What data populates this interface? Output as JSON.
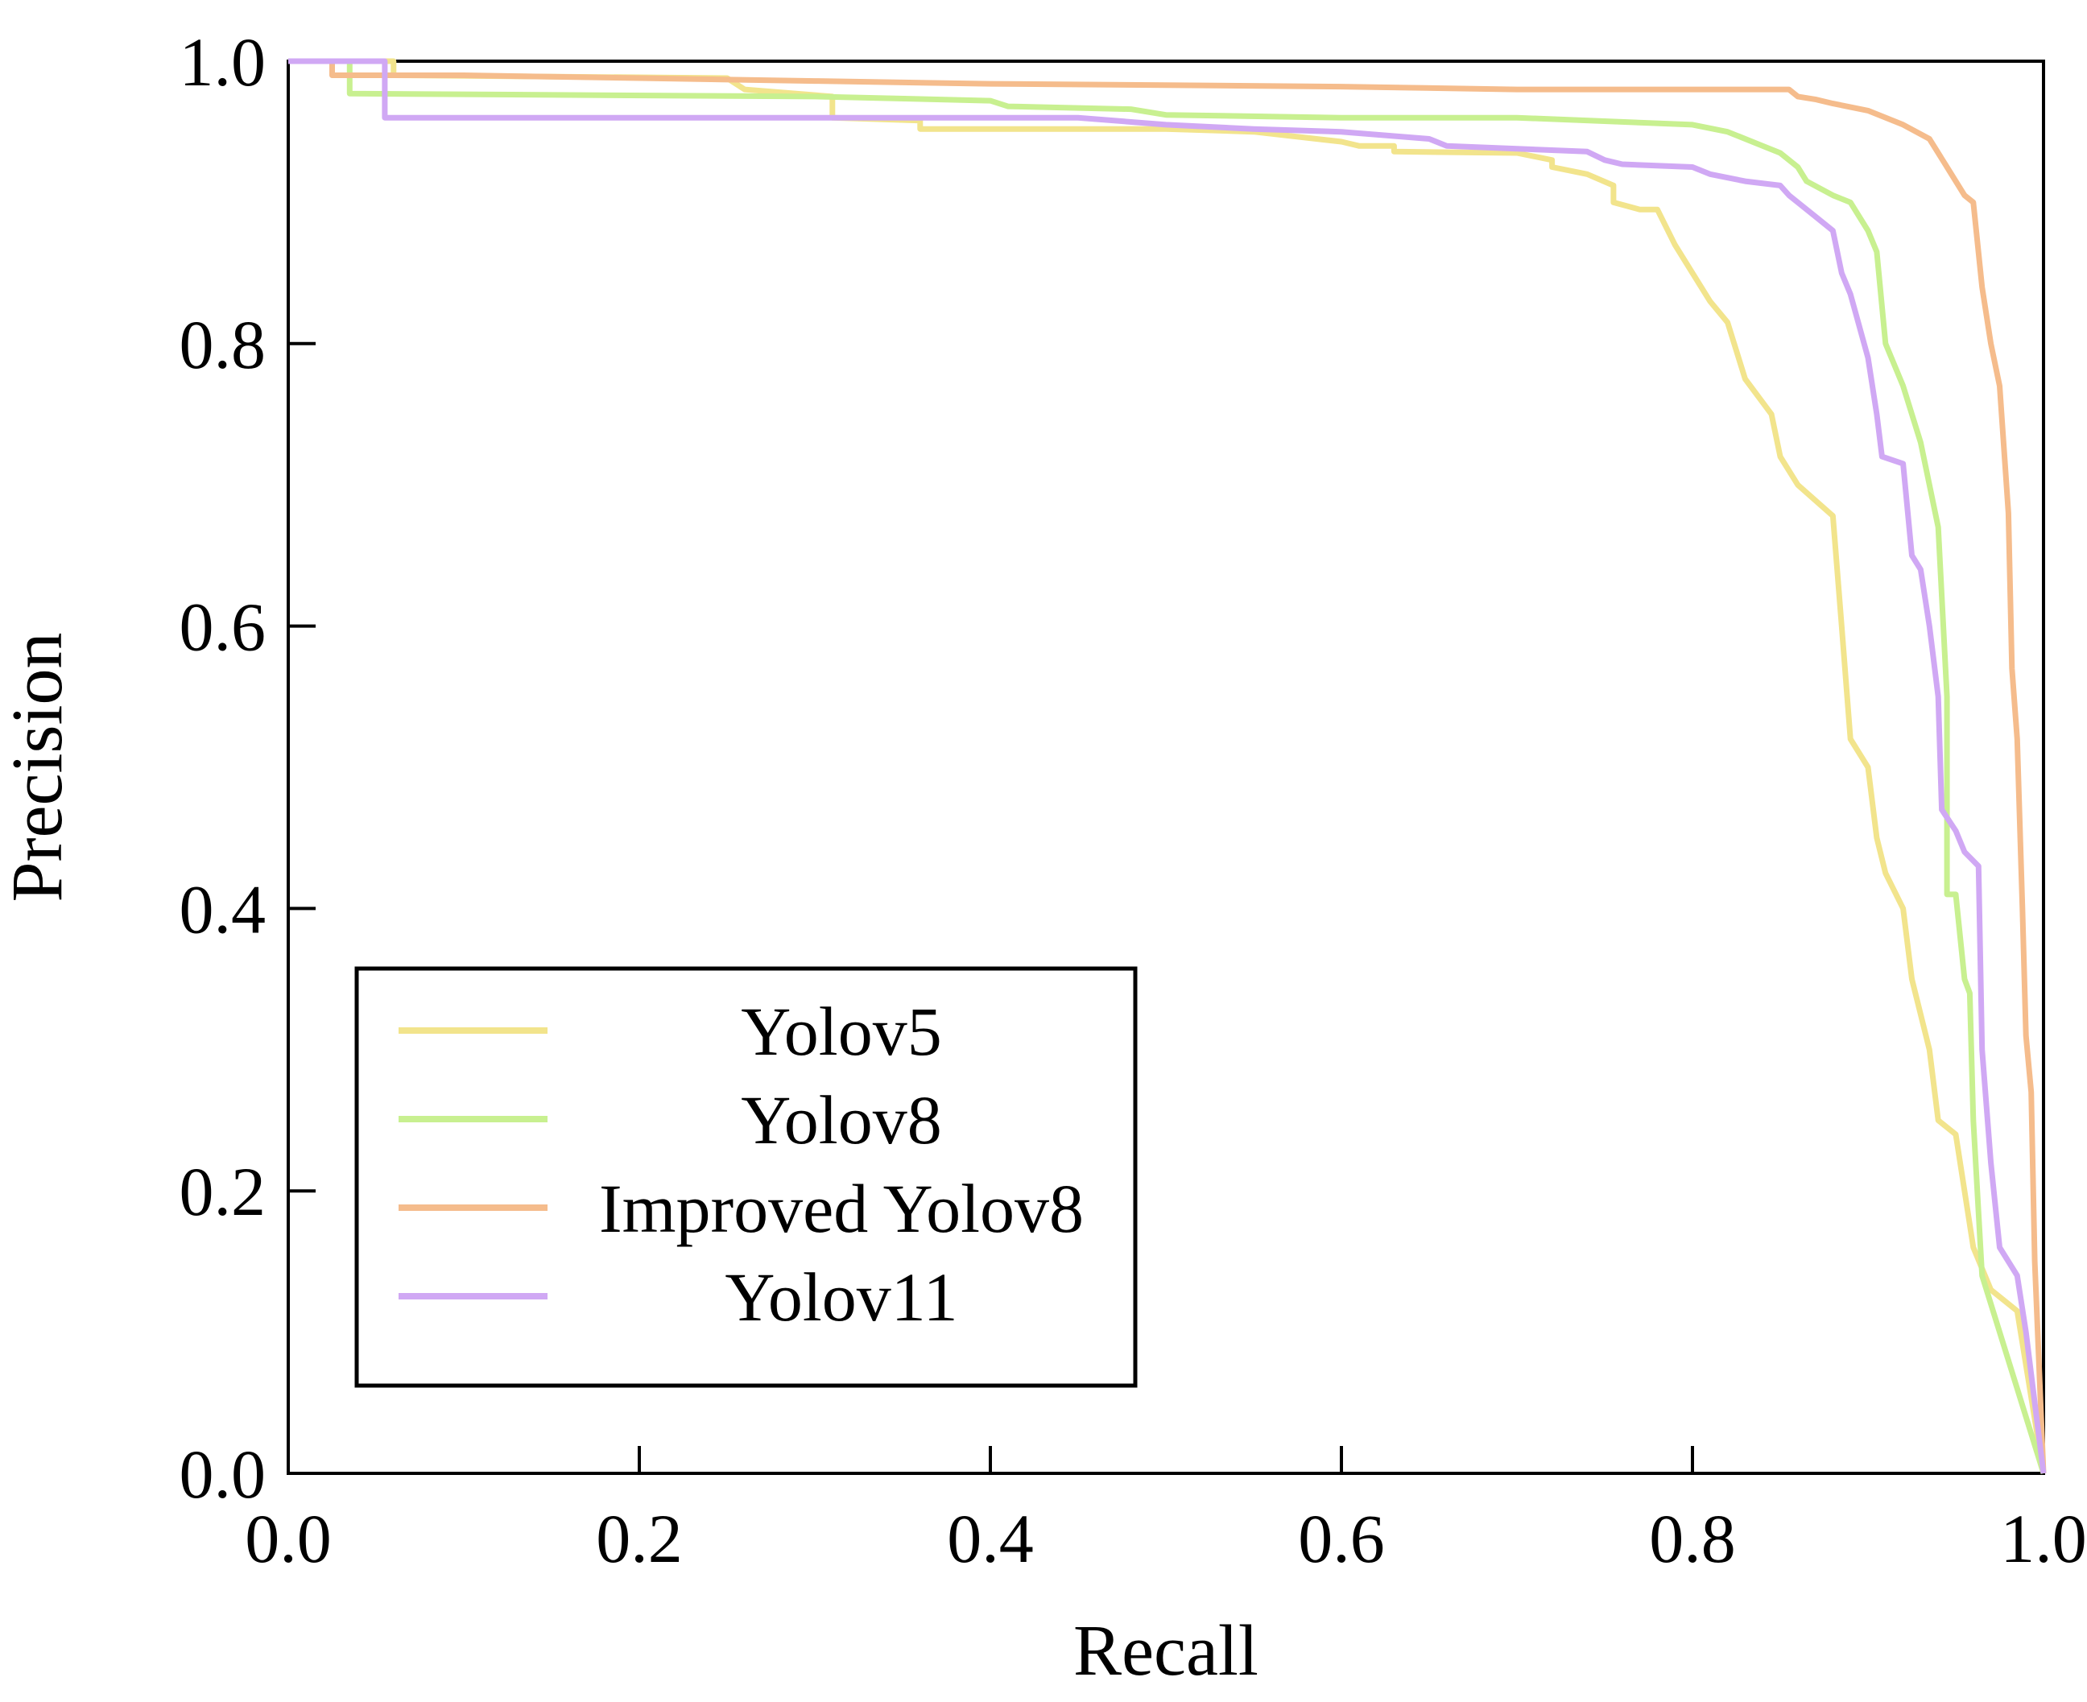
{
  "chart_data": {
    "type": "line",
    "title": "",
    "xlabel": "Recall",
    "ylabel": "Precision",
    "xlim": [
      0.0,
      1.0
    ],
    "ylim": [
      0.0,
      1.0
    ],
    "grid": false,
    "legend_position": "bottom-left",
    "xticks": [
      "0.0",
      "0.2",
      "0.4",
      "0.6",
      "0.8",
      "1.0"
    ],
    "yticks": [
      "0.0",
      "0.2",
      "0.4",
      "0.6",
      "0.8",
      "1.0"
    ],
    "series": [
      {
        "name": "Yolov5",
        "color": "#f2e48c",
        "points": [
          [
            0.0,
            1.0
          ],
          [
            0.06,
            1.0
          ],
          [
            0.06,
            0.99
          ],
          [
            0.25,
            0.988
          ],
          [
            0.26,
            0.98
          ],
          [
            0.31,
            0.975
          ],
          [
            0.31,
            0.96
          ],
          [
            0.36,
            0.958
          ],
          [
            0.36,
            0.952
          ],
          [
            0.5,
            0.952
          ],
          [
            0.55,
            0.95
          ],
          [
            0.6,
            0.943
          ],
          [
            0.61,
            0.94
          ],
          [
            0.63,
            0.94
          ],
          [
            0.63,
            0.936
          ],
          [
            0.7,
            0.935
          ],
          [
            0.72,
            0.93
          ],
          [
            0.72,
            0.925
          ],
          [
            0.74,
            0.92
          ],
          [
            0.755,
            0.912
          ],
          [
            0.755,
            0.9
          ],
          [
            0.77,
            0.895
          ],
          [
            0.78,
            0.895
          ],
          [
            0.79,
            0.87
          ],
          [
            0.8,
            0.85
          ],
          [
            0.81,
            0.83
          ],
          [
            0.82,
            0.815
          ],
          [
            0.83,
            0.775
          ],
          [
            0.845,
            0.75
          ],
          [
            0.85,
            0.72
          ],
          [
            0.86,
            0.7
          ],
          [
            0.88,
            0.678
          ],
          [
            0.885,
            0.6
          ],
          [
            0.89,
            0.52
          ],
          [
            0.9,
            0.5
          ],
          [
            0.905,
            0.45
          ],
          [
            0.91,
            0.425
          ],
          [
            0.92,
            0.4
          ],
          [
            0.925,
            0.35
          ],
          [
            0.935,
            0.3
          ],
          [
            0.94,
            0.25
          ],
          [
            0.95,
            0.24
          ],
          [
            0.955,
            0.2
          ],
          [
            0.96,
            0.16
          ],
          [
            0.97,
            0.13
          ],
          [
            0.985,
            0.115
          ],
          [
            1.0,
            0.0
          ]
        ]
      },
      {
        "name": "Yolov8",
        "color": "#c8f090",
        "points": [
          [
            0.0,
            1.0
          ],
          [
            0.035,
            1.0
          ],
          [
            0.035,
            0.977
          ],
          [
            0.3,
            0.975
          ],
          [
            0.4,
            0.972
          ],
          [
            0.41,
            0.968
          ],
          [
            0.48,
            0.966
          ],
          [
            0.5,
            0.962
          ],
          [
            0.6,
            0.96
          ],
          [
            0.7,
            0.96
          ],
          [
            0.8,
            0.955
          ],
          [
            0.82,
            0.95
          ],
          [
            0.84,
            0.94
          ],
          [
            0.85,
            0.935
          ],
          [
            0.86,
            0.925
          ],
          [
            0.865,
            0.915
          ],
          [
            0.88,
            0.905
          ],
          [
            0.89,
            0.9
          ],
          [
            0.9,
            0.88
          ],
          [
            0.905,
            0.865
          ],
          [
            0.91,
            0.8
          ],
          [
            0.92,
            0.77
          ],
          [
            0.93,
            0.73
          ],
          [
            0.935,
            0.7
          ],
          [
            0.94,
            0.67
          ],
          [
            0.945,
            0.55
          ],
          [
            0.945,
            0.41
          ],
          [
            0.95,
            0.41
          ],
          [
            0.955,
            0.35
          ],
          [
            0.958,
            0.34
          ],
          [
            0.96,
            0.25
          ],
          [
            0.965,
            0.14
          ],
          [
            1.0,
            0.0
          ]
        ]
      },
      {
        "name": "Improved Yolov8",
        "color": "#f5bc8c",
        "points": [
          [
            0.0,
            1.0
          ],
          [
            0.025,
            1.0
          ],
          [
            0.025,
            0.99
          ],
          [
            0.1,
            0.99
          ],
          [
            0.2,
            0.988
          ],
          [
            0.3,
            0.986
          ],
          [
            0.4,
            0.984
          ],
          [
            0.5,
            0.983
          ],
          [
            0.6,
            0.982
          ],
          [
            0.7,
            0.98
          ],
          [
            0.8,
            0.98
          ],
          [
            0.855,
            0.98
          ],
          [
            0.86,
            0.975
          ],
          [
            0.87,
            0.973
          ],
          [
            0.88,
            0.97
          ],
          [
            0.9,
            0.965
          ],
          [
            0.92,
            0.955
          ],
          [
            0.935,
            0.945
          ],
          [
            0.945,
            0.925
          ],
          [
            0.955,
            0.905
          ],
          [
            0.96,
            0.9
          ],
          [
            0.965,
            0.84
          ],
          [
            0.97,
            0.8
          ],
          [
            0.975,
            0.77
          ],
          [
            0.98,
            0.68
          ],
          [
            0.982,
            0.57
          ],
          [
            0.985,
            0.52
          ],
          [
            0.988,
            0.4
          ],
          [
            0.99,
            0.31
          ],
          [
            0.993,
            0.27
          ],
          [
            0.995,
            0.15
          ],
          [
            1.0,
            0.0
          ]
        ]
      },
      {
        "name": "Yolov11",
        "color": "#d0a8f4",
        "points": [
          [
            0.0,
            1.0
          ],
          [
            0.055,
            1.0
          ],
          [
            0.055,
            0.96
          ],
          [
            0.1,
            0.96
          ],
          [
            0.3,
            0.96
          ],
          [
            0.4,
            0.96
          ],
          [
            0.45,
            0.96
          ],
          [
            0.5,
            0.955
          ],
          [
            0.55,
            0.952
          ],
          [
            0.6,
            0.95
          ],
          [
            0.65,
            0.945
          ],
          [
            0.66,
            0.94
          ],
          [
            0.7,
            0.938
          ],
          [
            0.74,
            0.936
          ],
          [
            0.75,
            0.93
          ],
          [
            0.76,
            0.927
          ],
          [
            0.8,
            0.925
          ],
          [
            0.81,
            0.92
          ],
          [
            0.83,
            0.915
          ],
          [
            0.85,
            0.912
          ],
          [
            0.855,
            0.905
          ],
          [
            0.87,
            0.89
          ],
          [
            0.88,
            0.88
          ],
          [
            0.885,
            0.85
          ],
          [
            0.89,
            0.835
          ],
          [
            0.9,
            0.79
          ],
          [
            0.905,
            0.75
          ],
          [
            0.908,
            0.72
          ],
          [
            0.92,
            0.715
          ],
          [
            0.925,
            0.65
          ],
          [
            0.93,
            0.64
          ],
          [
            0.935,
            0.6
          ],
          [
            0.94,
            0.55
          ],
          [
            0.942,
            0.47
          ],
          [
            0.95,
            0.455
          ],
          [
            0.955,
            0.44
          ],
          [
            0.963,
            0.43
          ],
          [
            0.965,
            0.3
          ],
          [
            0.97,
            0.22
          ],
          [
            0.975,
            0.16
          ],
          [
            0.98,
            0.15
          ],
          [
            0.985,
            0.14
          ],
          [
            0.99,
            0.1
          ],
          [
            1.0,
            0.0
          ]
        ]
      }
    ]
  }
}
